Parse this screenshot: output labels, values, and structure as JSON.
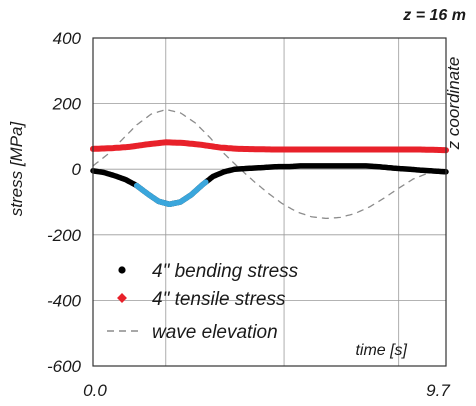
{
  "chart_data": {
    "type": "line",
    "title": "z = 16 m",
    "xlabel": "time [s]",
    "ylabel": "stress [MPa]",
    "y2label": "z coordinate",
    "xlim": [
      0.0,
      9.7
    ],
    "ylim": [
      -600,
      400
    ],
    "x_ticks": [
      "0.0",
      "9.7"
    ],
    "y_ticks": [
      -600,
      -400,
      -200,
      0,
      200,
      400
    ],
    "grid": true,
    "legend_position": "bottom-left",
    "series": [
      {
        "name": "4\" bending stress",
        "color": "#000000",
        "highlight_color": "#3aa6dc",
        "highlight_range": [
          1.2,
          3.1
        ],
        "x": [
          0.0,
          0.3,
          0.6,
          0.9,
          1.2,
          1.5,
          1.8,
          2.1,
          2.4,
          2.7,
          3.0,
          3.3,
          3.6,
          3.9,
          4.2,
          4.5,
          4.8,
          5.1,
          5.4,
          5.7,
          6.0,
          6.3,
          6.6,
          6.9,
          7.2,
          7.5,
          7.8,
          8.1,
          8.4,
          8.7,
          9.0,
          9.3,
          9.7
        ],
        "values": [
          -5,
          -10,
          -20,
          -32,
          -50,
          -75,
          -98,
          -107,
          -100,
          -78,
          -48,
          -22,
          -8,
          0,
          2,
          4,
          6,
          8,
          8,
          10,
          10,
          10,
          10,
          10,
          10,
          10,
          8,
          5,
          2,
          0,
          -3,
          -5,
          -8
        ]
      },
      {
        "name": "4\" tensile stress",
        "color": "#e8212a",
        "x": [
          0.0,
          0.5,
          1.0,
          1.5,
          2.0,
          2.5,
          3.0,
          3.5,
          4.0,
          4.5,
          5.0,
          5.5,
          6.0,
          6.5,
          7.0,
          7.5,
          8.0,
          8.5,
          9.0,
          9.7
        ],
        "values": [
          62,
          64,
          68,
          76,
          82,
          80,
          74,
          66,
          62,
          61,
          60,
          60,
          60,
          60,
          60,
          60,
          60,
          60,
          60,
          58
        ]
      },
      {
        "name": "wave elevation",
        "color": "#8c8c8c",
        "dashed": true,
        "x": [
          0.0,
          0.4,
          0.8,
          1.2,
          1.6,
          2.0,
          2.4,
          2.8,
          3.2,
          3.6,
          4.0,
          4.4,
          4.8,
          5.2,
          5.6,
          6.0,
          6.4,
          6.8,
          7.2,
          7.6,
          8.0,
          8.4,
          8.8,
          9.2,
          9.7
        ],
        "values": [
          10,
          45,
          90,
          135,
          168,
          182,
          172,
          142,
          98,
          48,
          5,
          -35,
          -72,
          -105,
          -130,
          -145,
          -150,
          -147,
          -135,
          -115,
          -88,
          -58,
          -30,
          -12,
          -2
        ]
      }
    ]
  }
}
